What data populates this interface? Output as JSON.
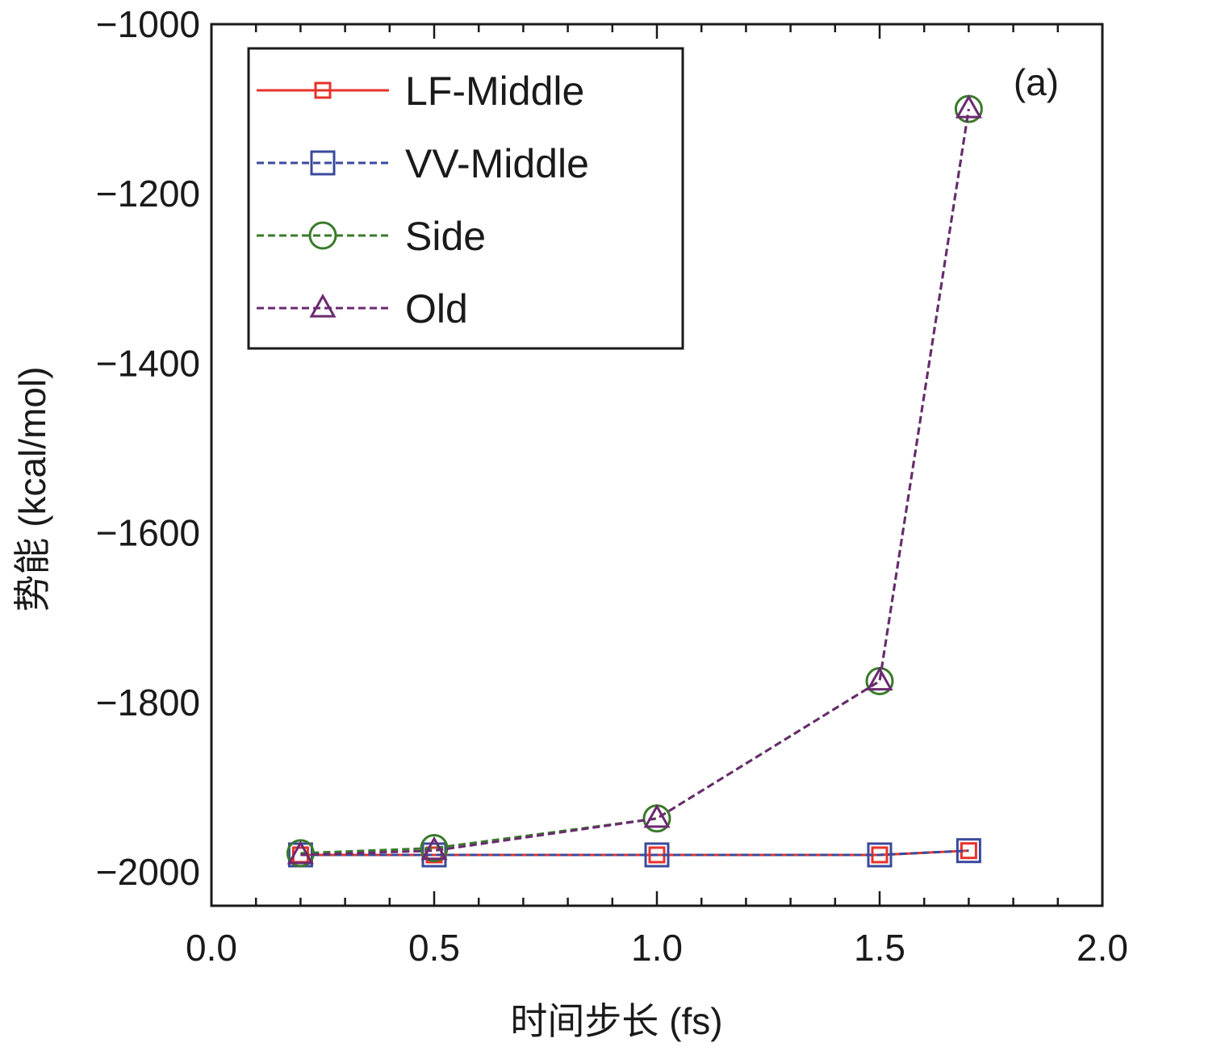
{
  "chart_data": {
    "type": "line",
    "panel_label": "(a)",
    "xlabel": "时间步长 (fs)",
    "ylabel": "势能 (kcal/mol)",
    "xlim": [
      0.0,
      2.0
    ],
    "ylim": [
      -2040,
      -1000
    ],
    "x_ticks": [
      0.0,
      0.5,
      1.0,
      1.5,
      2.0
    ],
    "x_tick_labels": [
      "0.0",
      "0.5",
      "1.0",
      "1.5",
      "2.0"
    ],
    "y_ticks": [
      -1000,
      -1200,
      -1400,
      -1600,
      -1800,
      -2000
    ],
    "y_tick_labels": [
      "−1000",
      "−1200",
      "−1400",
      "−1600",
      "−1800",
      "−2000"
    ],
    "x": [
      0.2,
      0.5,
      1.0,
      1.5,
      1.7
    ],
    "legend_position": "top-left",
    "grid": false,
    "series": [
      {
        "name": "LF-Middle",
        "values": [
          -1980,
          -1980,
          -1980,
          -1980,
          -1975
        ],
        "color": "#e8322a",
        "dash": "solid",
        "marker": "square-small"
      },
      {
        "name": "VV-Middle",
        "values": [
          -1980,
          -1980,
          -1980,
          -1980,
          -1975
        ],
        "color": "#3a4a9c",
        "dash": "dashed",
        "marker": "square"
      },
      {
        "name": "Side",
        "values": [
          -1978,
          -1972,
          -1937,
          -1775,
          -1100
        ],
        "color": "#3a7a2a",
        "dash": "dashed",
        "marker": "circle"
      },
      {
        "name": "Old",
        "values": [
          -1980,
          -1975,
          -1937,
          -1775,
          -1100
        ],
        "color": "#6a2a70",
        "dash": "dashed",
        "marker": "triangle"
      }
    ]
  }
}
